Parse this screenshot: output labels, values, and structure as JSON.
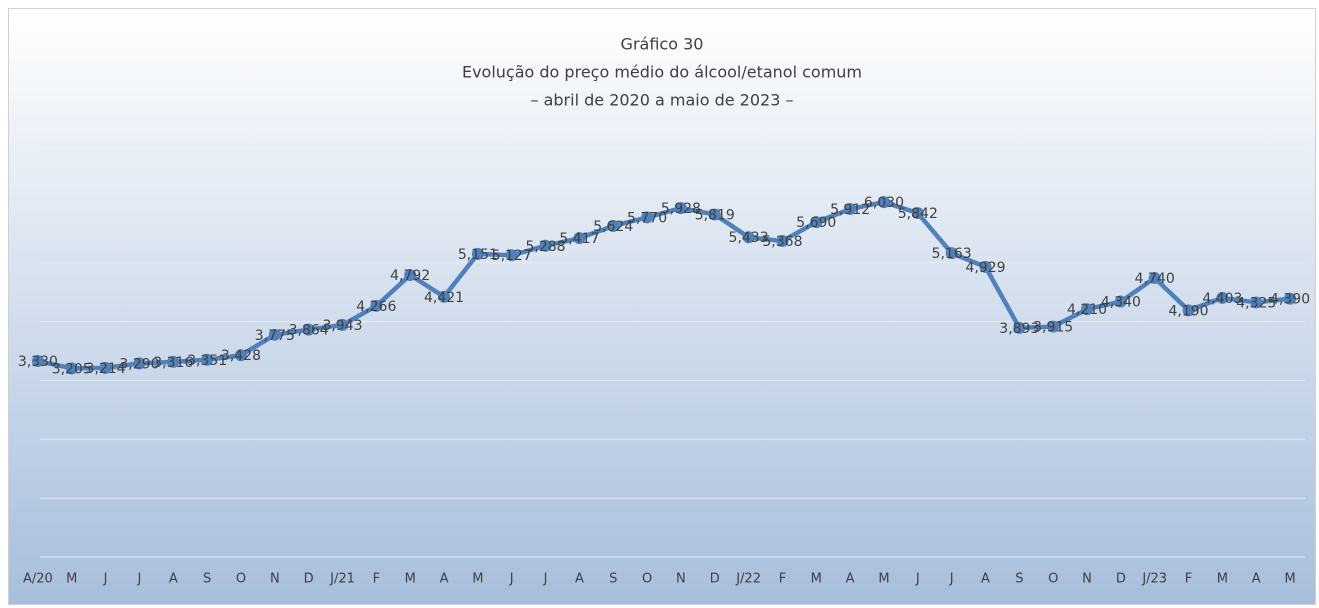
{
  "chart_data": {
    "type": "line",
    "title": "Gráfico 30",
    "subtitle": "Evolução do preço médio do álcool/etanol comum",
    "subtitle2": "– abril de 2020 a maio de 2023 –",
    "categories": [
      "A/20",
      "M",
      "J",
      "J",
      "A",
      "S",
      "O",
      "N",
      "D",
      "J/21",
      "F",
      "M",
      "A",
      "M",
      "J",
      "J",
      "A",
      "S",
      "O",
      "N",
      "D",
      "J/22",
      "F",
      "M",
      "A",
      "M",
      "J",
      "J",
      "A",
      "S",
      "O",
      "N",
      "D",
      "J/23",
      "F",
      "M",
      "A",
      "M"
    ],
    "series": [
      {
        "name": "Preço médio",
        "color": "#4f81bd",
        "values": [
          3.33,
          3.205,
          3.214,
          3.29,
          3.316,
          3.351,
          3.428,
          3.775,
          3.864,
          3.943,
          4.266,
          4.792,
          4.421,
          5.151,
          5.127,
          5.288,
          5.417,
          5.624,
          5.77,
          5.928,
          5.819,
          5.433,
          5.368,
          5.69,
          5.912,
          6.03,
          5.842,
          5.163,
          4.929,
          3.893,
          3.915,
          4.21,
          4.34,
          4.74,
          4.19,
          4.403,
          4.325,
          4.39
        ],
        "value_labels": [
          "3,330",
          "3,205",
          "3,214",
          "3,290",
          "3,316",
          "3,351",
          "3,428",
          "3,775",
          "3,864",
          "3,943",
          "4,266",
          "4,792",
          "4,421",
          "5,151",
          "5,127",
          "5,288",
          "5,417",
          "5,624",
          "5,770",
          "5,928",
          "5,819",
          "5,433",
          "5,368",
          "5,690",
          "5,912",
          "6,030",
          "5,842",
          "5,163",
          "4,929",
          "3,893",
          "3,915",
          "4,210",
          "4,340",
          "4,740",
          "4,190",
          "4,403",
          "4,325",
          "4,390"
        ]
      }
    ],
    "ylim": [
      0,
      7
    ],
    "yticks": [
      0,
      1,
      2,
      3,
      4,
      5,
      6,
      7
    ],
    "grid": true
  }
}
